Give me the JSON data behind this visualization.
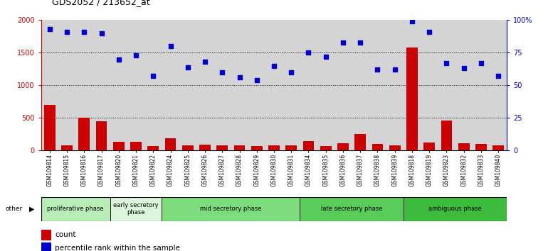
{
  "title": "GDS2052 / 213652_at",
  "samples": [
    "GSM109814",
    "GSM109815",
    "GSM109816",
    "GSM109817",
    "GSM109820",
    "GSM109821",
    "GSM109822",
    "GSM109824",
    "GSM109825",
    "GSM109826",
    "GSM109827",
    "GSM109828",
    "GSM109829",
    "GSM109830",
    "GSM109831",
    "GSM109834",
    "GSM109835",
    "GSM109836",
    "GSM109837",
    "GSM109838",
    "GSM109839",
    "GSM109818",
    "GSM109819",
    "GSM109823",
    "GSM109832",
    "GSM109833",
    "GSM109840"
  ],
  "counts": [
    700,
    80,
    500,
    450,
    130,
    140,
    70,
    185,
    75,
    90,
    80,
    75,
    70,
    75,
    80,
    150,
    70,
    115,
    250,
    100,
    80,
    1580,
    120,
    460,
    110,
    100,
    75
  ],
  "percentiles": [
    93,
    91,
    91,
    90,
    70,
    73,
    57,
    80,
    64,
    68,
    60,
    56,
    54,
    65,
    60,
    75,
    72,
    83,
    83,
    62,
    62,
    99,
    91,
    67,
    63,
    67,
    57
  ],
  "phases": [
    {
      "label": "proliferative phase",
      "start": 0,
      "end": 3,
      "color": "#b8edb8"
    },
    {
      "label": "early secretory\nphase",
      "start": 4,
      "end": 6,
      "color": "#daf5da"
    },
    {
      "label": "mid secretory phase",
      "start": 7,
      "end": 14,
      "color": "#7ddc7d"
    },
    {
      "label": "late secretory phase",
      "start": 15,
      "end": 20,
      "color": "#5acc5a"
    },
    {
      "label": "ambiguous phase",
      "start": 21,
      "end": 26,
      "color": "#3dbb3d"
    }
  ],
  "bar_color": "#cc0000",
  "dot_color": "#0000cc",
  "ylim_left": [
    0,
    2000
  ],
  "ylim_right": [
    0,
    100
  ],
  "yticks_left": [
    0,
    500,
    1000,
    1500,
    2000
  ],
  "yticks_right": [
    0,
    25,
    50,
    75,
    100
  ],
  "bg_color": "#d4d4d4",
  "title_fontsize": 9,
  "tick_fontsize": 7,
  "label_fontsize": 7
}
